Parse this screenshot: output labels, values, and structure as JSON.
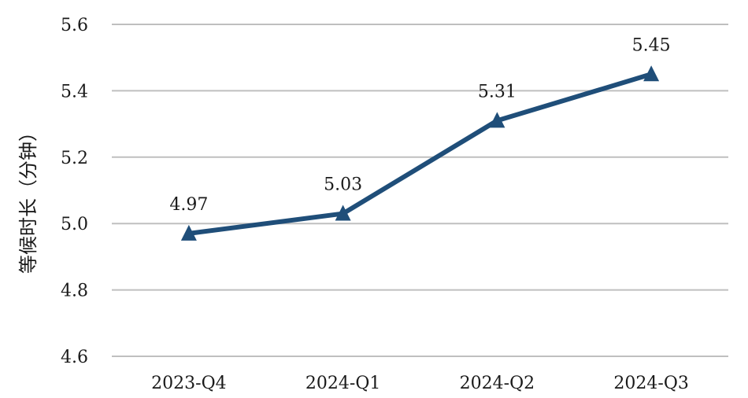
{
  "chart_data": {
    "type": "line",
    "categories": [
      "2023-Q4",
      "2024-Q1",
      "2024-Q2",
      "2024-Q3"
    ],
    "series": [
      {
        "values": [
          4.97,
          5.03,
          5.31,
          5.45
        ]
      }
    ],
    "data_labels": [
      "4.97",
      "5.03",
      "5.31",
      "5.45"
    ],
    "xlabel": "",
    "ylabel": "等候时长（分钟）",
    "ylim": [
      4.6,
      5.6
    ],
    "yticks": [
      "4.6",
      "4.8",
      "5.0",
      "5.2",
      "5.4",
      "5.6"
    ],
    "grid": true,
    "legend": "none",
    "marker": "triangle",
    "colors": {
      "line": "#1f4e79",
      "grid": "#bfbfbf"
    }
  }
}
